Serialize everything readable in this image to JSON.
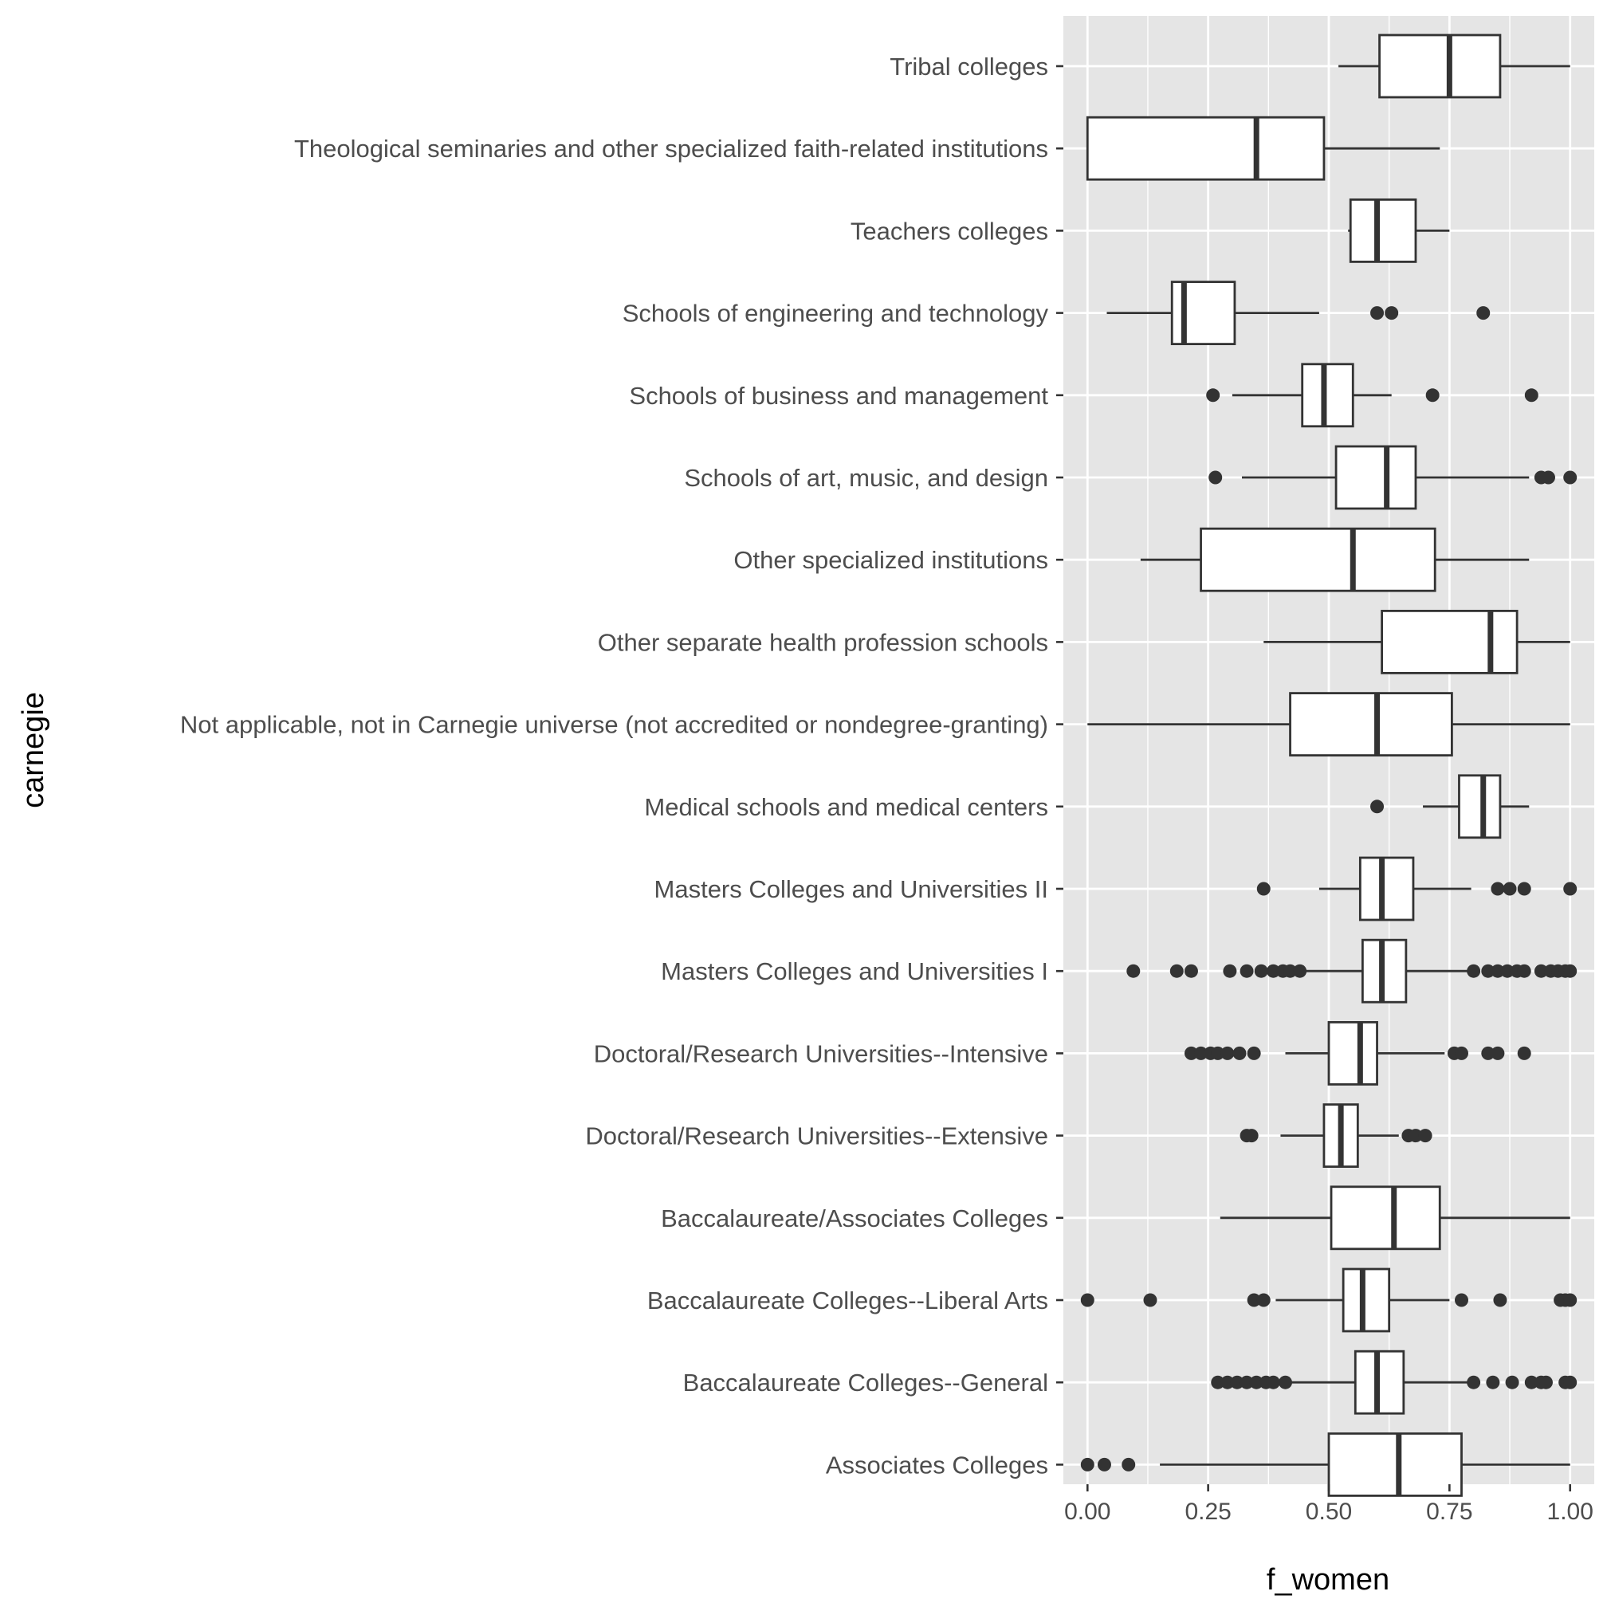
{
  "chart_data": {
    "type": "boxplot",
    "orientation": "horizontal",
    "xlabel": "f_women",
    "ylabel": "carnegie",
    "xlim": [
      -0.05,
      1.05
    ],
    "x_ticks": [
      0,
      0.25,
      0.5,
      0.75,
      1
    ],
    "x_tick_labels": [
      "0.00",
      "0.25",
      "0.50",
      "0.75",
      "1.00"
    ],
    "grid": true,
    "colors": {
      "panel_background": "#e5e5e5",
      "grid": "#ffffff",
      "box_fill": "#ffffff",
      "box_stroke": "#333333",
      "outlier": "#333333",
      "tick_text": "#4d4d4d"
    },
    "categories": [
      {
        "label": "Tribal colleges",
        "whisker_low": 0.52,
        "q1": 0.605,
        "median": 0.75,
        "q3": 0.855,
        "whisker_high": 1.0,
        "outliers": []
      },
      {
        "label": "Theological seminaries and other specialized faith-related institutions",
        "whisker_low": 0.0,
        "q1": 0.0,
        "median": 0.35,
        "q3": 0.49,
        "whisker_high": 0.73,
        "outliers": []
      },
      {
        "label": "Teachers colleges",
        "whisker_low": 0.54,
        "q1": 0.545,
        "median": 0.6,
        "q3": 0.68,
        "whisker_high": 0.75,
        "outliers": []
      },
      {
        "label": "Schools of engineering and technology",
        "whisker_low": 0.04,
        "q1": 0.175,
        "median": 0.2,
        "q3": 0.305,
        "whisker_high": 0.48,
        "outliers": [
          0.6,
          0.63,
          0.82
        ]
      },
      {
        "label": "Schools of business and management",
        "whisker_low": 0.3,
        "q1": 0.445,
        "median": 0.49,
        "q3": 0.55,
        "whisker_high": 0.63,
        "outliers": [
          0.26,
          0.715,
          0.92
        ]
      },
      {
        "label": "Schools of art, music, and design",
        "whisker_low": 0.32,
        "q1": 0.515,
        "median": 0.62,
        "q3": 0.68,
        "whisker_high": 0.915,
        "outliers": [
          0.265,
          0.94,
          0.955,
          1.0
        ]
      },
      {
        "label": "Other specialized institutions",
        "whisker_low": 0.11,
        "q1": 0.235,
        "median": 0.55,
        "q3": 0.72,
        "whisker_high": 0.915,
        "outliers": []
      },
      {
        "label": "Other separate health profession schools",
        "whisker_low": 0.365,
        "q1": 0.61,
        "median": 0.835,
        "q3": 0.89,
        "whisker_high": 1.0,
        "outliers": []
      },
      {
        "label": "Not applicable, not in Carnegie universe (not accredited or nondegree-granting)",
        "whisker_low": 0.0,
        "q1": 0.42,
        "median": 0.6,
        "q3": 0.755,
        "whisker_high": 1.0,
        "outliers": []
      },
      {
        "label": "Medical schools and medical centers",
        "whisker_low": 0.695,
        "q1": 0.77,
        "median": 0.82,
        "q3": 0.855,
        "whisker_high": 0.915,
        "outliers": [
          0.6
        ]
      },
      {
        "label": "Masters Colleges and Universities II",
        "whisker_low": 0.48,
        "q1": 0.565,
        "median": 0.61,
        "q3": 0.675,
        "whisker_high": 0.795,
        "outliers": [
          0.365,
          0.85,
          0.875,
          0.905,
          1.0
        ]
      },
      {
        "label": "Masters Colleges and Universities I",
        "whisker_low": 0.45,
        "q1": 0.57,
        "median": 0.61,
        "q3": 0.66,
        "whisker_high": 0.79,
        "outliers": [
          0.095,
          0.185,
          0.215,
          0.295,
          0.33,
          0.36,
          0.385,
          0.405,
          0.42,
          0.44,
          0.8,
          0.83,
          0.85,
          0.87,
          0.89,
          0.905,
          0.94,
          0.96,
          0.975,
          0.99,
          1.0
        ]
      },
      {
        "label": "Doctoral/Research Universities--Intensive",
        "whisker_low": 0.41,
        "q1": 0.5,
        "median": 0.565,
        "q3": 0.6,
        "whisker_high": 0.74,
        "outliers": [
          0.215,
          0.235,
          0.255,
          0.27,
          0.29,
          0.315,
          0.345,
          0.76,
          0.775,
          0.83,
          0.85,
          0.905
        ]
      },
      {
        "label": "Doctoral/Research Universities--Extensive",
        "whisker_low": 0.4,
        "q1": 0.49,
        "median": 0.525,
        "q3": 0.56,
        "whisker_high": 0.645,
        "outliers": [
          0.33,
          0.34,
          0.665,
          0.68,
          0.7
        ]
      },
      {
        "label": "Baccalaureate/Associates Colleges",
        "whisker_low": 0.275,
        "q1": 0.505,
        "median": 0.635,
        "q3": 0.73,
        "whisker_high": 1.0,
        "outliers": []
      },
      {
        "label": "Baccalaureate Colleges--Liberal Arts",
        "whisker_low": 0.39,
        "q1": 0.53,
        "median": 0.57,
        "q3": 0.625,
        "whisker_high": 0.75,
        "outliers": [
          0.0,
          0.13,
          0.345,
          0.365,
          0.775,
          0.855,
          0.98,
          0.99,
          1.0
        ]
      },
      {
        "label": "Baccalaureate Colleges--General",
        "whisker_low": 0.41,
        "q1": 0.555,
        "median": 0.6,
        "q3": 0.655,
        "whisker_high": 0.795,
        "outliers": [
          0.27,
          0.29,
          0.31,
          0.33,
          0.35,
          0.37,
          0.385,
          0.41,
          0.8,
          0.84,
          0.88,
          0.92,
          0.94,
          0.95,
          0.99,
          1.0
        ]
      },
      {
        "label": "Associates Colleges",
        "whisker_low": 0.15,
        "q1": 0.5,
        "median": 0.645,
        "q3": 0.775,
        "whisker_high": 1.0,
        "outliers": [
          0.0,
          0.035,
          0.085
        ]
      }
    ]
  }
}
